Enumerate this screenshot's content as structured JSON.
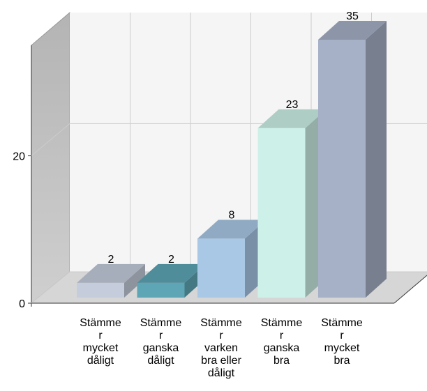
{
  "chart_data": {
    "type": "bar3d",
    "categories": [
      [
        "Stämme",
        "r",
        "mycket",
        "dåligt"
      ],
      [
        "Stämme",
        "r",
        "ganska",
        "dåligt"
      ],
      [
        "Stämme",
        "r",
        "varken",
        "bra eller",
        "dåligt"
      ],
      [
        "Stämme",
        "r",
        "ganska",
        "bra"
      ],
      [
        "Stämme",
        "r",
        "mycket",
        "bra"
      ]
    ],
    "values": [
      2,
      2,
      8,
      23,
      35
    ],
    "colors": [
      "#c5cddc",
      "#5ea6b6",
      "#a9c8e6",
      "#cdf1e8",
      "#a6b0c7"
    ],
    "ylim": [
      0,
      35
    ],
    "yticks": [
      0,
      20
    ],
    "grid": true
  }
}
